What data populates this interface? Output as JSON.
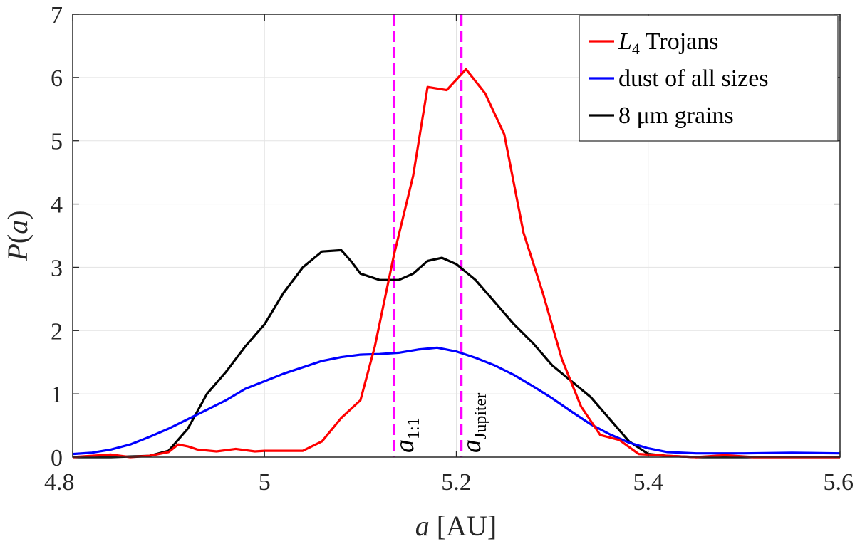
{
  "chart_data": {
    "type": "line",
    "title": "",
    "xlabel": "a [AU]",
    "ylabel": "P(a)",
    "xlim": [
      4.8,
      5.6
    ],
    "ylim": [
      0,
      7
    ],
    "xticks": [
      4.8,
      5.0,
      5.2,
      5.4,
      5.6
    ],
    "xtick_labels": [
      "4.8",
      "5",
      "5.2",
      "5.4",
      "5.6"
    ],
    "yticks": [
      0,
      1,
      2,
      3,
      4,
      5,
      6,
      7
    ],
    "ytick_labels": [
      "0",
      "1",
      "2",
      "3",
      "4",
      "5",
      "6",
      "7"
    ],
    "grid": true,
    "legend_position": "top-right",
    "series": [
      {
        "name": "L4 Trojans",
        "name_main": "L",
        "name_sub": "4",
        "name_rest": " Trojans",
        "color": "#ff0000",
        "x": [
          4.8,
          4.82,
          4.84,
          4.86,
          4.88,
          4.9,
          4.91,
          4.92,
          4.93,
          4.95,
          4.97,
          4.99,
          5.0,
          5.02,
          5.04,
          5.06,
          5.08,
          5.1,
          5.115,
          5.135,
          5.155,
          5.17,
          5.19,
          5.21,
          5.23,
          5.25,
          5.27,
          5.29,
          5.31,
          5.33,
          5.35,
          5.37,
          5.39,
          5.42,
          5.45,
          5.48,
          5.51,
          5.55,
          5.6
        ],
        "y": [
          0.0,
          0.02,
          0.04,
          0.0,
          0.02,
          0.08,
          0.2,
          0.17,
          0.12,
          0.09,
          0.13,
          0.09,
          0.1,
          0.1,
          0.1,
          0.25,
          0.62,
          0.9,
          1.75,
          3.2,
          4.45,
          5.85,
          5.8,
          6.13,
          5.75,
          5.1,
          3.55,
          2.6,
          1.55,
          0.8,
          0.35,
          0.27,
          0.05,
          0.02,
          0.0,
          0.03,
          0.0,
          0.0,
          0.0
        ]
      },
      {
        "name": "dust of all sizes",
        "color": "#0000ff",
        "x": [
          4.8,
          4.82,
          4.84,
          4.86,
          4.88,
          4.9,
          4.92,
          4.94,
          4.96,
          4.98,
          5.0,
          5.02,
          5.04,
          5.06,
          5.08,
          5.1,
          5.12,
          5.14,
          5.16,
          5.18,
          5.2,
          5.22,
          5.24,
          5.26,
          5.28,
          5.3,
          5.32,
          5.34,
          5.36,
          5.38,
          5.4,
          5.42,
          5.45,
          5.5,
          5.55,
          5.6
        ],
        "y": [
          0.05,
          0.07,
          0.12,
          0.2,
          0.32,
          0.45,
          0.6,
          0.75,
          0.9,
          1.08,
          1.2,
          1.32,
          1.42,
          1.52,
          1.58,
          1.62,
          1.63,
          1.65,
          1.7,
          1.73,
          1.67,
          1.57,
          1.45,
          1.3,
          1.12,
          0.93,
          0.72,
          0.52,
          0.36,
          0.23,
          0.14,
          0.08,
          0.06,
          0.06,
          0.07,
          0.06
        ]
      },
      {
        "name": "8 μm grains",
        "color": "#000000",
        "x": [
          4.8,
          4.84,
          4.88,
          4.9,
          4.92,
          4.94,
          4.96,
          4.98,
          5.0,
          5.02,
          5.04,
          5.06,
          5.08,
          5.09,
          5.1,
          5.12,
          5.14,
          5.155,
          5.17,
          5.185,
          5.2,
          5.22,
          5.24,
          5.26,
          5.28,
          5.3,
          5.32,
          5.34,
          5.36,
          5.38,
          5.4,
          5.42,
          5.45,
          5.5,
          5.55,
          5.6
        ],
        "y": [
          0.0,
          0.0,
          0.02,
          0.1,
          0.45,
          1.0,
          1.35,
          1.75,
          2.1,
          2.6,
          3.0,
          3.25,
          3.27,
          3.1,
          2.9,
          2.8,
          2.8,
          2.9,
          3.1,
          3.15,
          3.05,
          2.8,
          2.45,
          2.1,
          1.8,
          1.45,
          1.2,
          0.95,
          0.6,
          0.25,
          0.05,
          0.02,
          0.0,
          0.0,
          0.0,
          0.0
        ]
      }
    ],
    "vertical_lines": [
      {
        "x": 5.135,
        "color": "#ff00ff",
        "style": "dashed",
        "label_main": "a",
        "label_sub": "1:1"
      },
      {
        "x": 5.205,
        "color": "#ff00ff",
        "style": "dashed",
        "label_main": "a",
        "label_sub": "Jupiter"
      }
    ]
  }
}
